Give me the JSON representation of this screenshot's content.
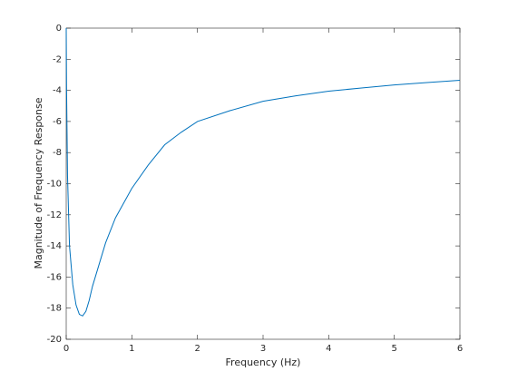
{
  "chart_data": {
    "type": "line",
    "x_label": "Frequency (Hz)",
    "y_label": "Magnitude of Frequency Response",
    "x": [
      0,
      0.005,
      0.02,
      0.05,
      0.1,
      0.15,
      0.2,
      0.25,
      0.3,
      0.35,
      0.4,
      0.5,
      0.6,
      0.75,
      1,
      1.25,
      1.5,
      1.75,
      2,
      2.5,
      3,
      3.5,
      4,
      4.5,
      5,
      5.5,
      6
    ],
    "series": [
      {
        "color": "#0072bd",
        "values": [
          0,
          -3.8,
          -9.5,
          -14,
          -16.5,
          -17.8,
          -18.4,
          -18.5,
          -18.2,
          -17.5,
          -16.6,
          -15.2,
          -13.8,
          -12.2,
          -10.3,
          -8.8,
          -7.5,
          -6.7,
          -6.0,
          -5.3,
          -4.7,
          -4.35,
          -4.05,
          -3.85,
          -3.65,
          -3.5,
          -3.35
        ]
      }
    ],
    "xlim": [
      0,
      6
    ],
    "ylim": [
      -20,
      0
    ],
    "xticks": [
      0,
      1,
      2,
      3,
      4,
      5,
      6
    ],
    "yticks": [
      -20,
      -18,
      -16,
      -14,
      -12,
      -10,
      -8,
      -6,
      -4,
      -2,
      0
    ]
  }
}
